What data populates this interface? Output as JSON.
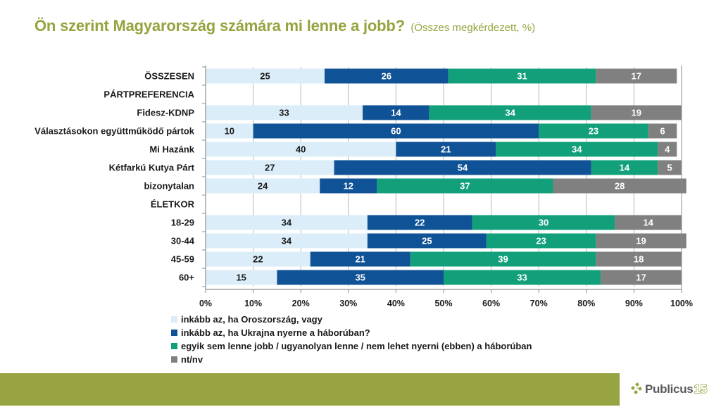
{
  "header": {
    "title": "Ön szerint Magyarország számára mi lenne a jobb?",
    "subtitle": "(Összes megkérdezett, %)"
  },
  "chart_data": {
    "type": "bar",
    "orientation": "horizontal",
    "stacked": "percent",
    "title": "Ön szerint Magyarország számára mi lenne a jobb?",
    "subtitle": "(Összes megkérdezett, %)",
    "xlabel": "",
    "ylabel": "",
    "xlim": [
      0,
      100
    ],
    "x_ticks": [
      "0%",
      "10%",
      "20%",
      "30%",
      "40%",
      "50%",
      "60%",
      "70%",
      "80%",
      "90%",
      "100%"
    ],
    "grid": true,
    "legend_position": "bottom",
    "categories": [
      "ÖSSZESEN",
      "PÁRTPREFERENCIA",
      "Fidesz-KDNP",
      "Választásokon együttműködő pártok",
      "Mi Hazánk",
      "Kétfarkú Kutya Párt",
      "bizonytalan",
      "ÉLETKOR",
      "18-29",
      "30-44",
      "45-59",
      "60+"
    ],
    "series": [
      {
        "name": "inkább az, ha Oroszország, vagy",
        "color": "#dbedf8",
        "label_color": "#1a1a1a",
        "values": [
          25,
          null,
          33,
          10,
          40,
          27,
          24,
          null,
          34,
          34,
          22,
          15
        ]
      },
      {
        "name": "inkább az, ha Ukrajna nyerne a háborúban?",
        "color": "#0f5295",
        "label_color": "#ffffff",
        "values": [
          26,
          null,
          14,
          60,
          21,
          54,
          12,
          null,
          22,
          25,
          21,
          35
        ]
      },
      {
        "name": "egyik sem lenne jobb / ugyanolyan lenne / nem lehet nyerni (ebben) a háborúban",
        "color": "#12a07a",
        "label_color": "#ffffff",
        "values": [
          31,
          null,
          34,
          23,
          34,
          14,
          37,
          null,
          30,
          23,
          39,
          33
        ]
      },
      {
        "name": "nt/nv",
        "color": "#808080",
        "label_color": "#ffffff",
        "values": [
          17,
          null,
          19,
          6,
          4,
          5,
          28,
          null,
          14,
          19,
          18,
          17
        ]
      }
    ]
  },
  "footer": {
    "brand_color": "#98a341",
    "logo_text": "Publicus",
    "logo_number": "15"
  }
}
